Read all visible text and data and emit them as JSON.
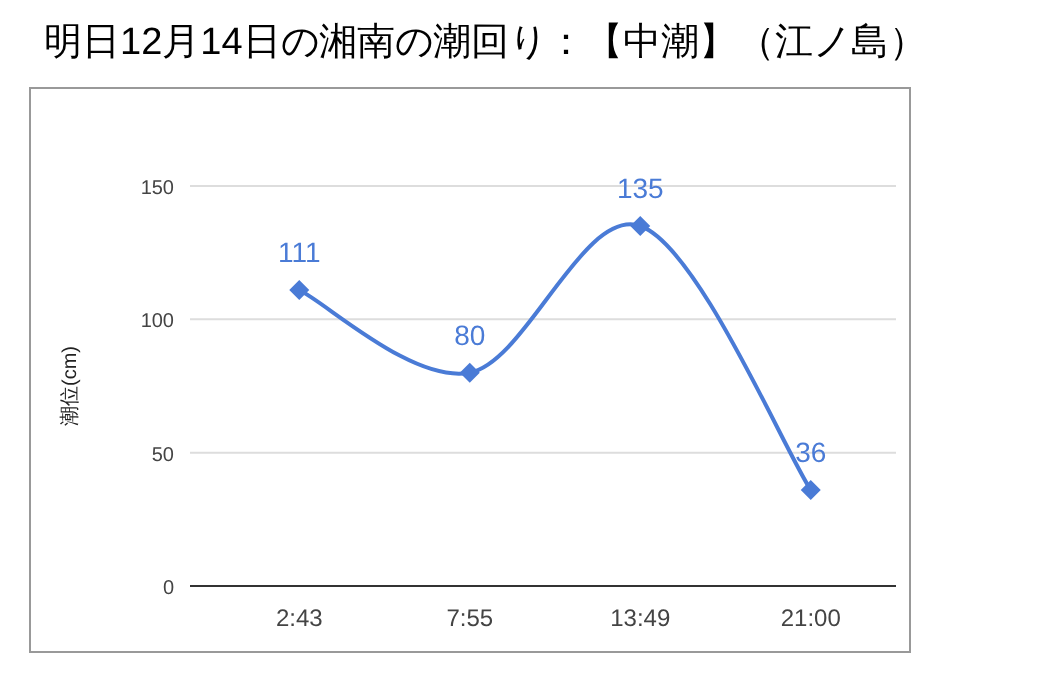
{
  "chart_data": {
    "type": "line",
    "title": "明日12月14日の湘南の潮回り：【中潮】（江ノ島）",
    "ylabel": "潮位(cm)",
    "categories": [
      "2:43",
      "7:55",
      "13:49",
      "21:00"
    ],
    "series": [
      {
        "color": "#4a7bd6",
        "values": [
          111,
          80,
          135,
          36
        ]
      }
    ],
    "ylim": [
      0,
      150
    ],
    "yticks": [
      0,
      50,
      100,
      150
    ],
    "grid": "y",
    "marker": "diamond",
    "data_labels": true
  }
}
